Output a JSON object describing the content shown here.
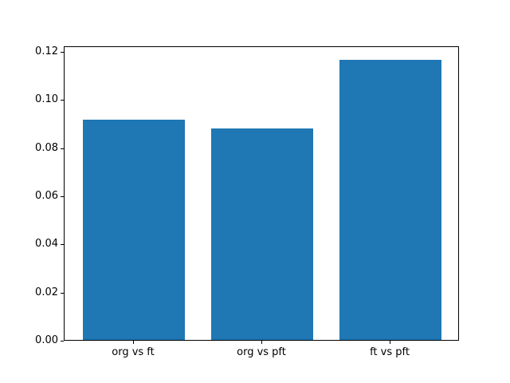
{
  "chart_data": {
    "type": "bar",
    "categories": [
      "org vs ft",
      "org vs pft",
      "ft vs pft"
    ],
    "values": [
      0.0914,
      0.0879,
      0.1165
    ],
    "title": "",
    "xlabel": "",
    "ylabel": "",
    "ylim": [
      0,
      0.1223
    ],
    "yticks": [
      {
        "value": 0.0,
        "label": "0.00"
      },
      {
        "value": 0.02,
        "label": "0.02"
      },
      {
        "value": 0.04,
        "label": "0.04"
      },
      {
        "value": 0.06,
        "label": "0.06"
      },
      {
        "value": 0.08,
        "label": "0.08"
      },
      {
        "value": 0.1,
        "label": "0.10"
      },
      {
        "value": 0.12,
        "label": "0.12"
      }
    ],
    "bar_color": "#1f77b4",
    "bar_width_fraction": 0.8,
    "grid": false,
    "legend": "none",
    "background_color": "#ffffff",
    "spine_color": "#000000",
    "tick_label_color": "#000000"
  }
}
